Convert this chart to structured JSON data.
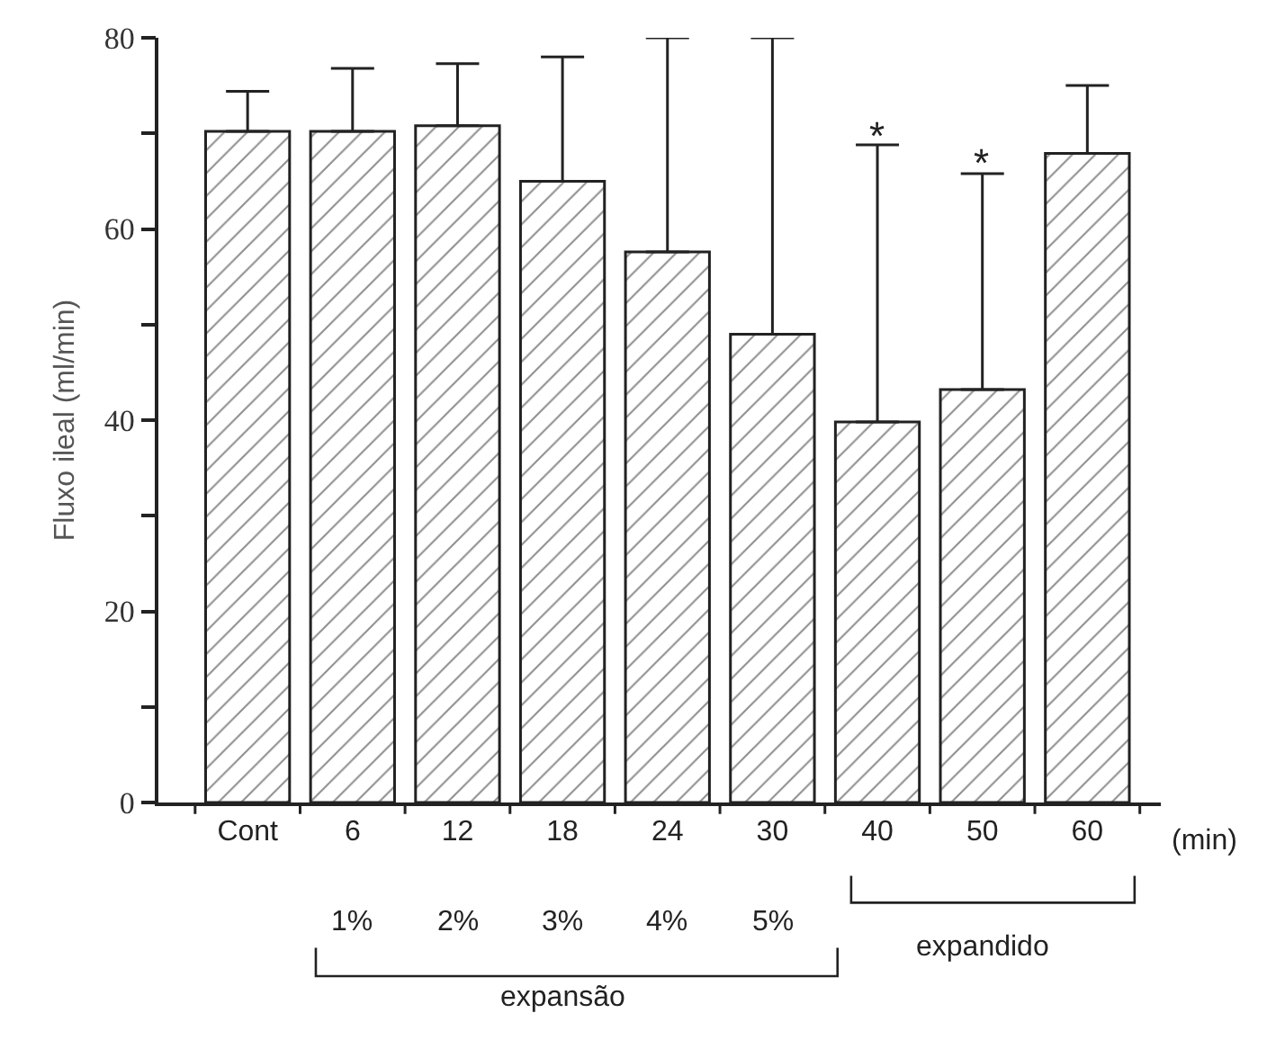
{
  "chart_data": {
    "type": "bar",
    "ylabel": "Fluxo ileal (ml/min)",
    "categories": [
      "Cont",
      "6",
      "12",
      "18",
      "24",
      "30",
      "40",
      "50",
      "60"
    ],
    "values": [
      70.2,
      70.2,
      70.8,
      65.0,
      57.6,
      49.0,
      39.8,
      43.2,
      67.9
    ],
    "errors": [
      [
        70.2,
        74.4
      ],
      [
        70.2,
        76.8
      ],
      [
        70.8,
        77.3
      ],
      [
        65.0,
        78.0
      ],
      [
        57.6,
        80
      ],
      [
        49.0,
        80
      ],
      [
        39.8,
        68.8
      ],
      [
        43.2,
        65.8
      ],
      [
        67.9,
        75.0
      ]
    ],
    "color": "#222222",
    "ylim": [
      0,
      80
    ],
    "yticks": [
      0,
      {
        "value": 10,
        "label": null
      },
      20,
      {
        "value": 30,
        "label": null
      },
      40,
      {
        "value": 50,
        "label": null
      },
      60,
      {
        "value": 70,
        "label": null
      },
      80
    ],
    "annotations": [
      "*",
      "*",
      "1%",
      "2%",
      "3%",
      "4%",
      "5%",
      "(min)",
      "expansão",
      "expandido"
    ]
  }
}
